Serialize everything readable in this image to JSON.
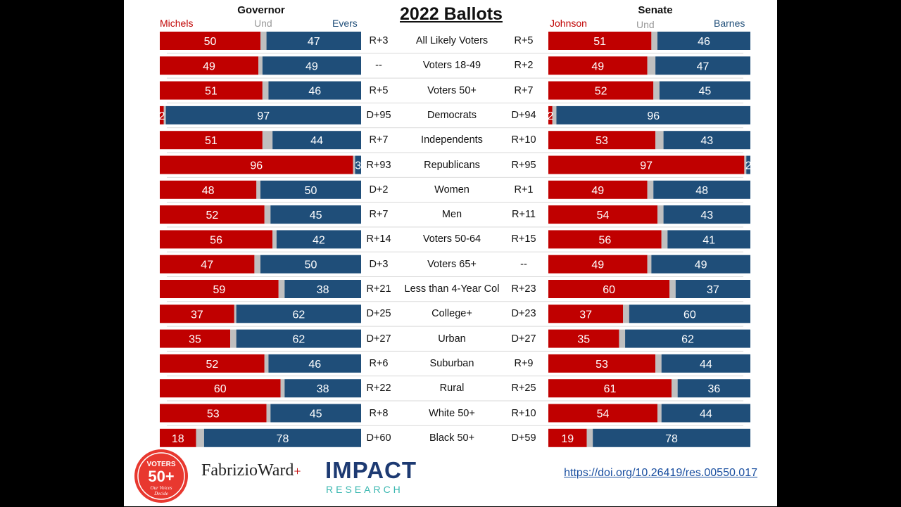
{
  "title": "2022 Ballots",
  "governor": {
    "heading": "Governor",
    "rep": "Michels",
    "und": "Und",
    "dem": "Evers"
  },
  "senate": {
    "heading": "Senate",
    "rep": "Johnson",
    "und": "Und",
    "dem": "Barnes"
  },
  "colors": {
    "rep": "#c00000",
    "dem": "#1f4e79",
    "und": "#bfbfbf",
    "separator": "#d9d9d9"
  },
  "url": "https://doi.org/10.26419/res.00550.017",
  "logos": {
    "voters": {
      "line1": "VOTERS",
      "line2": "50+",
      "line3": "Our Voices",
      "line4": "Decide"
    },
    "fabrizio": "FabrizioWard",
    "fabrizio_plus": "+",
    "impact": "IMPACT",
    "research": "RESEARCH"
  },
  "chart_data": {
    "type": "bar",
    "title": "2022 Ballots",
    "categories": [
      "All Likely Voters",
      "Voters 18-49",
      "Voters 50+",
      "Democrats",
      "Independents",
      "Republicans",
      "Women",
      "Men",
      "Voters 50-64",
      "Voters 65+",
      "Less than 4-Year Col",
      "College+",
      "Urban",
      "Suburban",
      "Rural",
      "White 50+",
      "Black 50+"
    ],
    "governor": {
      "series": [
        {
          "name": "Michels",
          "values": [
            50,
            49,
            51,
            2,
            51,
            96,
            48,
            52,
            56,
            47,
            59,
            37,
            35,
            52,
            60,
            53,
            18
          ]
        },
        {
          "name": "Und",
          "values": [
            3,
            2,
            3,
            1,
            5,
            1,
            2,
            3,
            2,
            3,
            3,
            1,
            3,
            2,
            2,
            2,
            4
          ]
        },
        {
          "name": "Evers",
          "values": [
            47,
            49,
            46,
            97,
            44,
            3,
            50,
            45,
            42,
            50,
            38,
            62,
            62,
            46,
            38,
            45,
            78
          ]
        }
      ],
      "margins": [
        "R+3",
        "--",
        "R+5",
        "D+95",
        "R+7",
        "R+93",
        "D+2",
        "R+7",
        "R+14",
        "D+3",
        "R+21",
        "D+25",
        "D+27",
        "R+6",
        "R+22",
        "R+8",
        "D+60"
      ]
    },
    "senate": {
      "series": [
        {
          "name": "Johnson",
          "values": [
            51,
            49,
            52,
            2,
            53,
            97,
            49,
            54,
            56,
            49,
            60,
            37,
            35,
            53,
            61,
            54,
            19
          ]
        },
        {
          "name": "Und",
          "values": [
            3,
            4,
            3,
            2,
            4,
            1,
            3,
            3,
            3,
            2,
            3,
            3,
            3,
            3,
            3,
            2,
            3
          ]
        },
        {
          "name": "Barnes",
          "values": [
            46,
            47,
            45,
            96,
            43,
            2,
            48,
            43,
            41,
            49,
            37,
            60,
            62,
            44,
            36,
            44,
            78
          ]
        }
      ],
      "margins": [
        "R+5",
        "R+2",
        "R+7",
        "D+94",
        "R+10",
        "R+95",
        "R+1",
        "R+11",
        "R+15",
        "--",
        "R+23",
        "D+23",
        "D+27",
        "R+9",
        "R+25",
        "R+10",
        "D+59"
      ]
    }
  }
}
